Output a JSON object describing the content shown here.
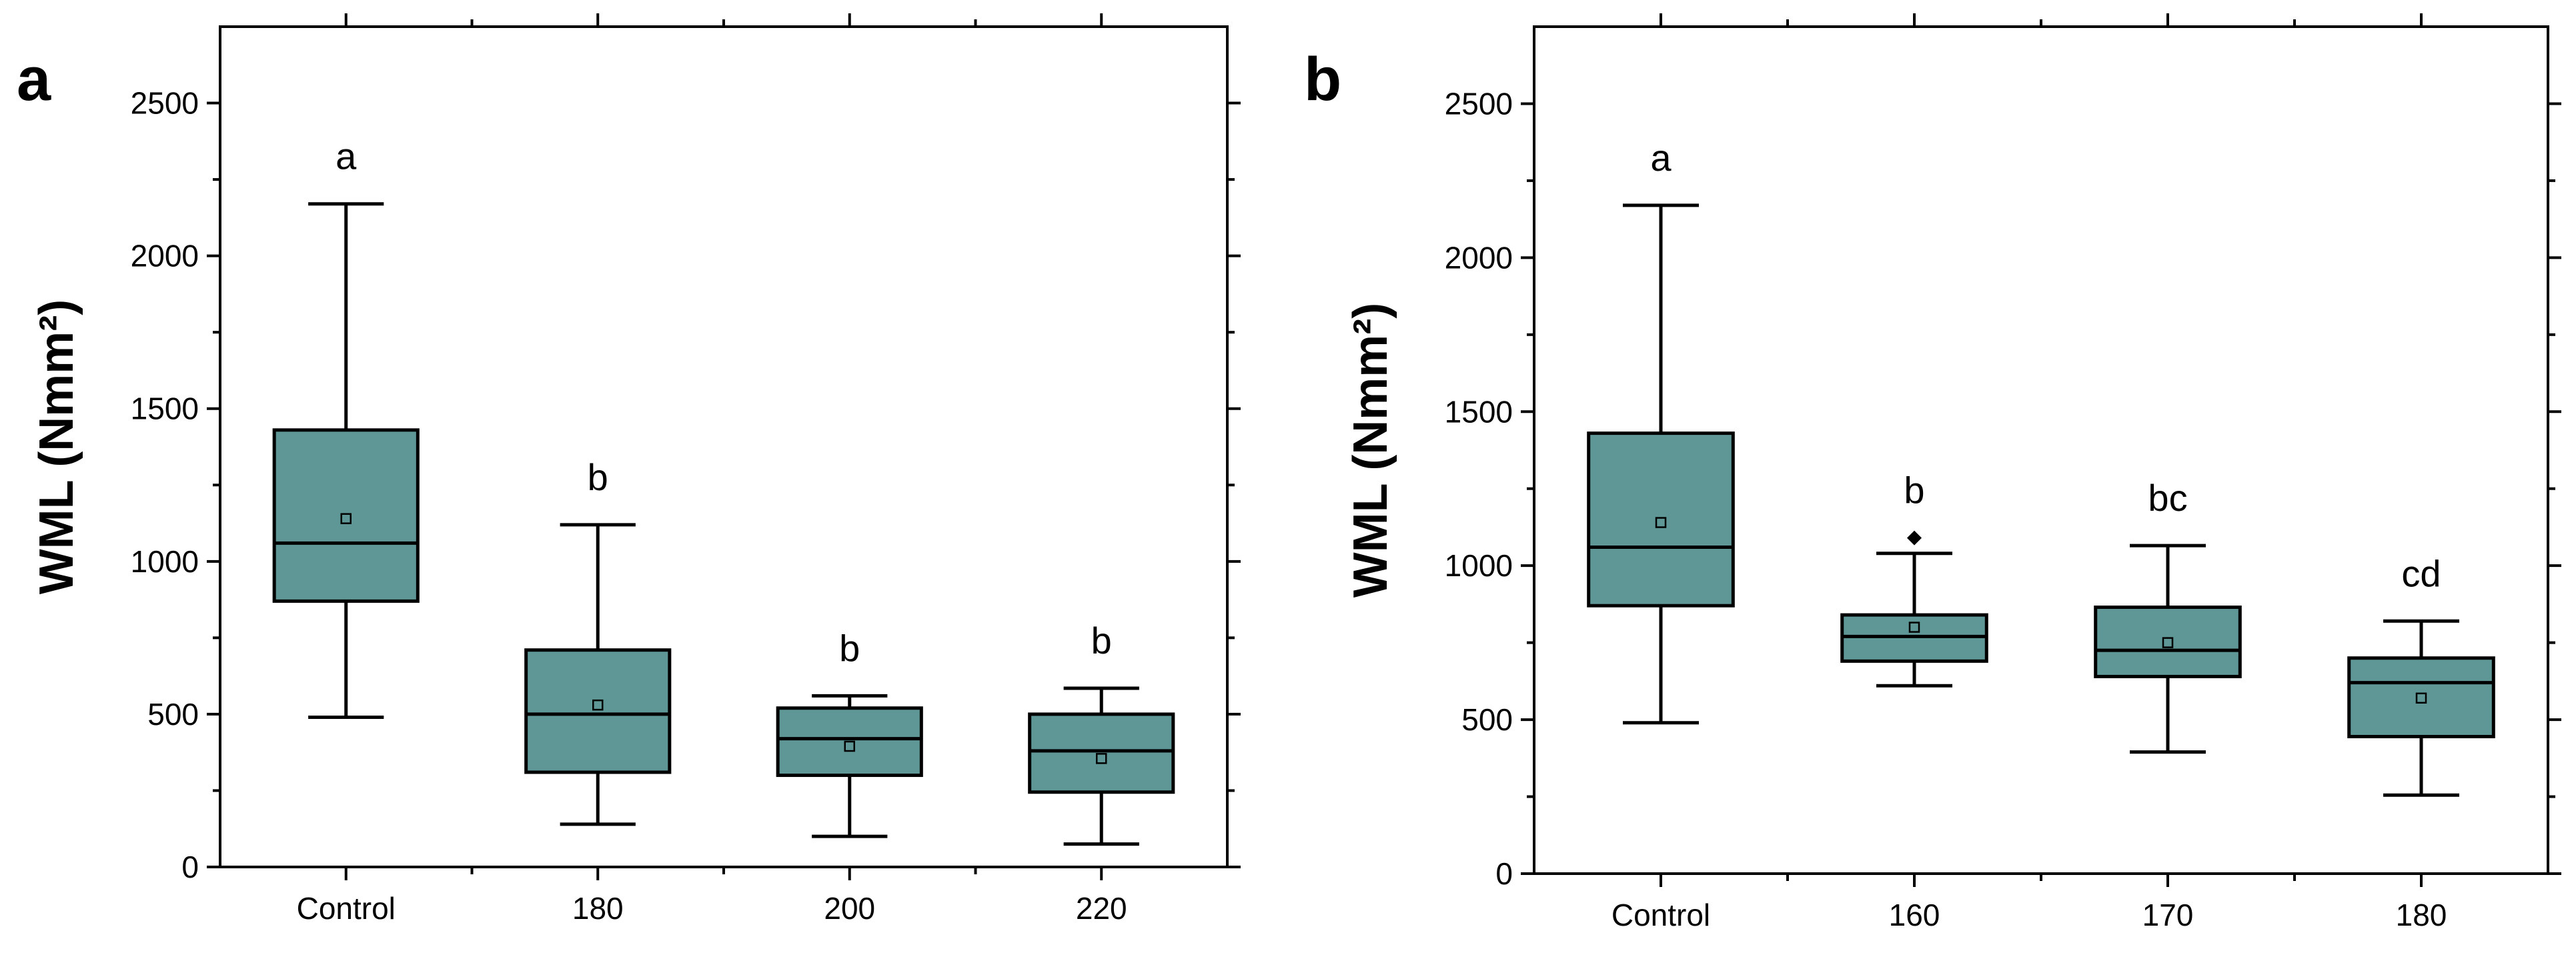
{
  "chart_data": [
    {
      "type": "box",
      "panel_label": "a",
      "ylabel": "WML (Nmm²)",
      "ylim": [
        0,
        2750
      ],
      "yticks": [
        0,
        500,
        1000,
        1500,
        2000,
        2500
      ],
      "ytick_labels": [
        "0",
        "500",
        "1000",
        "1500",
        "2000",
        "2500"
      ],
      "categories": [
        "Control",
        "180",
        "200",
        "220"
      ],
      "box_color": "#5f9796",
      "groups": [
        {
          "category": "Control",
          "min": 490,
          "q1": 870,
          "median": 1060,
          "q3": 1430,
          "max": 2170,
          "mean": 1140,
          "letter": "a",
          "outliers": []
        },
        {
          "category": "180",
          "min": 140,
          "q1": 310,
          "median": 500,
          "q3": 710,
          "max": 1120,
          "mean": 530,
          "letter": "b",
          "outliers": []
        },
        {
          "category": "200",
          "min": 100,
          "q1": 300,
          "median": 420,
          "q3": 520,
          "max": 560,
          "mean": 395,
          "letter": "b",
          "outliers": []
        },
        {
          "category": "220",
          "min": 75,
          "q1": 245,
          "median": 380,
          "q3": 500,
          "max": 585,
          "mean": 355,
          "letter": "b",
          "outliers": []
        }
      ]
    },
    {
      "type": "box",
      "panel_label": "b",
      "ylabel": "WML (Nmm²)",
      "ylim": [
        0,
        2750
      ],
      "yticks": [
        0,
        500,
        1000,
        1500,
        2000,
        2500
      ],
      "ytick_labels": [
        "0",
        "500",
        "1000",
        "1500",
        "2000",
        "2500"
      ],
      "categories": [
        "Control",
        "160",
        "170",
        "180"
      ],
      "box_color": "#5f9796",
      "groups": [
        {
          "category": "Control",
          "min": 490,
          "q1": 870,
          "median": 1060,
          "q3": 1430,
          "max": 2170,
          "mean": 1140,
          "letter": "a",
          "outliers": []
        },
        {
          "category": "160",
          "min": 610,
          "q1": 690,
          "median": 770,
          "q3": 840,
          "max": 1040,
          "mean": 800,
          "letter": "b",
          "outliers": [
            1090
          ]
        },
        {
          "category": "170",
          "min": 395,
          "q1": 640,
          "median": 725,
          "q3": 865,
          "max": 1065,
          "mean": 750,
          "letter": "bc",
          "outliers": []
        },
        {
          "category": "180",
          "min": 255,
          "q1": 445,
          "median": 620,
          "q3": 700,
          "max": 820,
          "mean": 570,
          "letter": "cd",
          "outliers": []
        }
      ]
    }
  ]
}
